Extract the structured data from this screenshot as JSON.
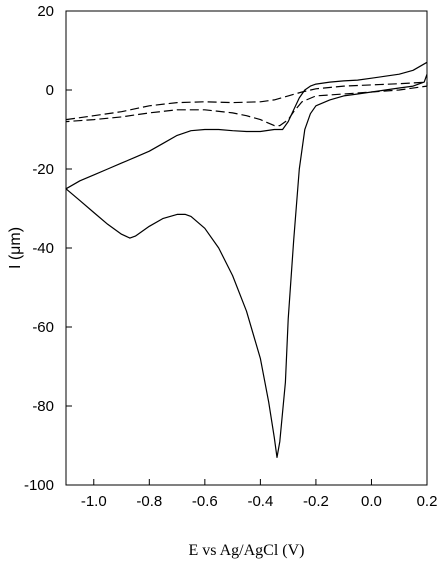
{
  "chart_data": {
    "type": "line",
    "title": "",
    "xlabel": "E vs Ag/AgCl (V)",
    "ylabel": "I (μm)",
    "xlim": [
      -1.1,
      0.2
    ],
    "ylim": [
      -100,
      20
    ],
    "xticks": [
      -1.0,
      -0.8,
      -0.6,
      -0.4,
      -0.2,
      0.0,
      0.2
    ],
    "xtick_labels": [
      "-1.0",
      "-0.8",
      "-0.6",
      "-0.4",
      "-0.2",
      "0.0",
      "0.2"
    ],
    "yticks": [
      20,
      0,
      -20,
      -40,
      -60,
      -80,
      -100
    ],
    "ytick_labels": [
      "20",
      "0",
      "-20",
      "-40",
      "-60",
      "-80",
      "-100"
    ],
    "grid": false,
    "legend": "none",
    "series": [
      {
        "style": "solid",
        "color": "#000000",
        "points": [
          [
            0.2,
            7
          ],
          [
            0.15,
            5
          ],
          [
            0.1,
            4
          ],
          [
            0.05,
            3.5
          ],
          [
            0.0,
            3
          ],
          [
            -0.05,
            2.5
          ],
          [
            -0.1,
            2.3
          ],
          [
            -0.15,
            2.0
          ],
          [
            -0.2,
            1.5
          ],
          [
            -0.22,
            1.0
          ],
          [
            -0.24,
            0
          ],
          [
            -0.26,
            -2
          ],
          [
            -0.28,
            -5
          ],
          [
            -0.3,
            -8
          ],
          [
            -0.32,
            -10
          ],
          [
            -0.35,
            -10
          ],
          [
            -0.4,
            -10.5
          ],
          [
            -0.45,
            -10.5
          ],
          [
            -0.5,
            -10.3
          ],
          [
            -0.55,
            -10.0
          ],
          [
            -0.6,
            -10.0
          ],
          [
            -0.65,
            -10.3
          ],
          [
            -0.7,
            -11.5
          ],
          [
            -0.75,
            -13.5
          ],
          [
            -0.8,
            -15.5
          ],
          [
            -0.85,
            -17
          ],
          [
            -0.9,
            -18.5
          ],
          [
            -0.95,
            -20
          ],
          [
            -1.0,
            -21.5
          ],
          [
            -1.05,
            -23
          ],
          [
            -1.1,
            -25
          ],
          [
            -1.1,
            -25
          ],
          [
            -1.05,
            -28
          ],
          [
            -1.0,
            -31
          ],
          [
            -0.95,
            -34
          ],
          [
            -0.9,
            -36.5
          ],
          [
            -0.87,
            -37.5
          ],
          [
            -0.85,
            -37
          ],
          [
            -0.8,
            -34.5
          ],
          [
            -0.75,
            -32.5
          ],
          [
            -0.7,
            -31.5
          ],
          [
            -0.67,
            -31.5
          ],
          [
            -0.65,
            -32
          ],
          [
            -0.6,
            -35
          ],
          [
            -0.55,
            -40
          ],
          [
            -0.5,
            -47
          ],
          [
            -0.45,
            -56
          ],
          [
            -0.4,
            -68
          ],
          [
            -0.37,
            -79
          ],
          [
            -0.35,
            -88
          ],
          [
            -0.34,
            -93
          ],
          [
            -0.33,
            -89
          ],
          [
            -0.31,
            -74
          ],
          [
            -0.3,
            -58
          ],
          [
            -0.28,
            -38
          ],
          [
            -0.26,
            -20
          ],
          [
            -0.24,
            -10
          ],
          [
            -0.22,
            -6
          ],
          [
            -0.2,
            -4
          ],
          [
            -0.15,
            -2.5
          ],
          [
            -0.1,
            -1.5
          ],
          [
            -0.05,
            -1.0
          ],
          [
            0.0,
            -0.5
          ],
          [
            0.05,
            0
          ],
          [
            0.1,
            0.5
          ],
          [
            0.15,
            1.0
          ],
          [
            0.19,
            2
          ],
          [
            0.2,
            4
          ]
        ]
      },
      {
        "style": "dashed",
        "color": "#000000",
        "points": [
          [
            -1.1,
            -7.5
          ],
          [
            -1.0,
            -6.5
          ],
          [
            -0.9,
            -5.5
          ],
          [
            -0.8,
            -4.0
          ],
          [
            -0.7,
            -3.2
          ],
          [
            -0.6,
            -3.0
          ],
          [
            -0.5,
            -3.2
          ],
          [
            -0.4,
            -3.0
          ],
          [
            -0.35,
            -2.5
          ],
          [
            -0.3,
            -1.5
          ],
          [
            -0.25,
            -0.5
          ],
          [
            -0.2,
            0.3
          ],
          [
            -0.1,
            1.0
          ],
          [
            0.0,
            1.3
          ],
          [
            0.1,
            1.6
          ],
          [
            0.2,
            2.0
          ],
          [
            0.2,
            1.0
          ],
          [
            0.1,
            0
          ],
          [
            0.0,
            -0.5
          ],
          [
            -0.1,
            -1.0
          ],
          [
            -0.2,
            -1.5
          ],
          [
            -0.25,
            -3.0
          ],
          [
            -0.28,
            -5.5
          ],
          [
            -0.3,
            -7.5
          ],
          [
            -0.33,
            -9.0
          ],
          [
            -0.35,
            -9.0
          ],
          [
            -0.4,
            -7.5
          ],
          [
            -0.45,
            -6.5
          ],
          [
            -0.5,
            -5.8
          ],
          [
            -0.6,
            -5.0
          ],
          [
            -0.7,
            -5.0
          ],
          [
            -0.8,
            -5.8
          ],
          [
            -0.9,
            -6.8
          ],
          [
            -1.0,
            -7.5
          ],
          [
            -1.1,
            -8.0
          ]
        ]
      }
    ]
  }
}
